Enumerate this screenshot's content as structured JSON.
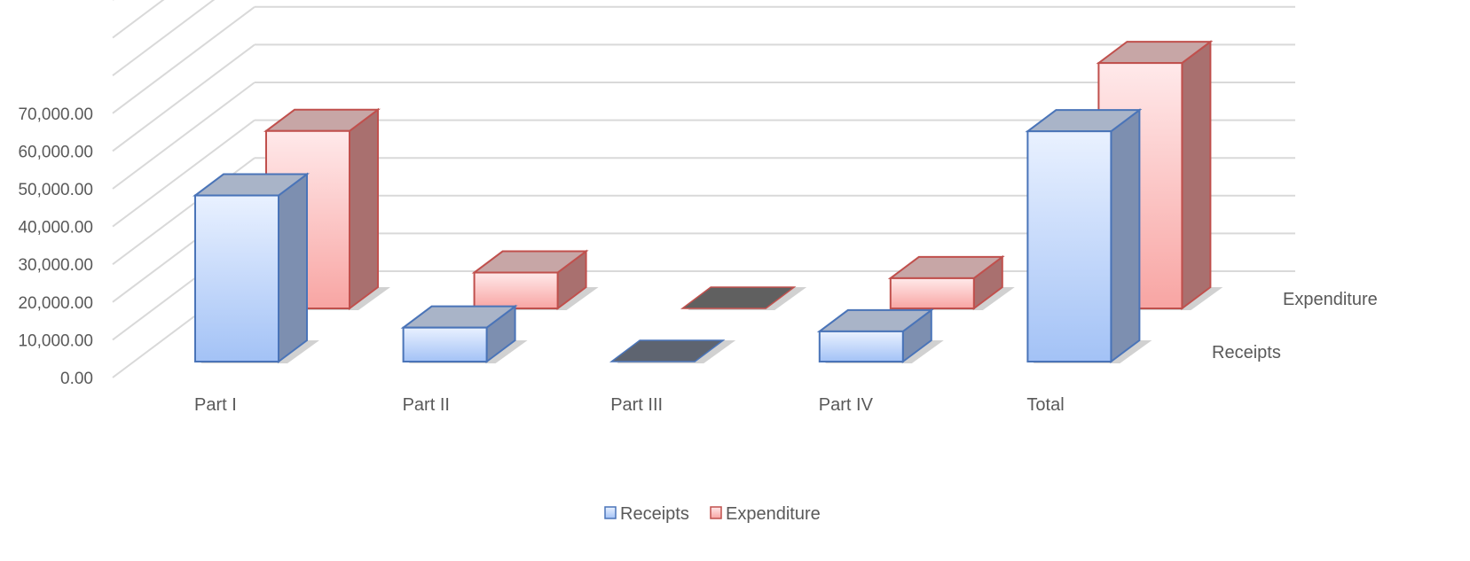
{
  "chart_data": {
    "type": "bar",
    "title": "",
    "xlabel": "",
    "ylabel": "",
    "categories": [
      "Part I",
      "Part II",
      "Part III",
      "Part IV",
      "Total"
    ],
    "ylim": [
      0,
      70000
    ],
    "y_ticks": [
      "0.00",
      "10,000.00",
      "20,000.00",
      "30,000.00",
      "40,000.00",
      "50,000.00",
      "60,000.00",
      "70,000.00"
    ],
    "series": [
      {
        "name": "Receipts",
        "values": [
          44000,
          9000,
          0,
          8000,
          61000
        ],
        "color": "#4472C4"
      },
      {
        "name": "Expenditure",
        "values": [
          47000,
          9500,
          0,
          8000,
          65000
        ],
        "color": "#C0504D"
      }
    ],
    "grid": true,
    "legend": "bottom-center",
    "style": "3d-column"
  }
}
